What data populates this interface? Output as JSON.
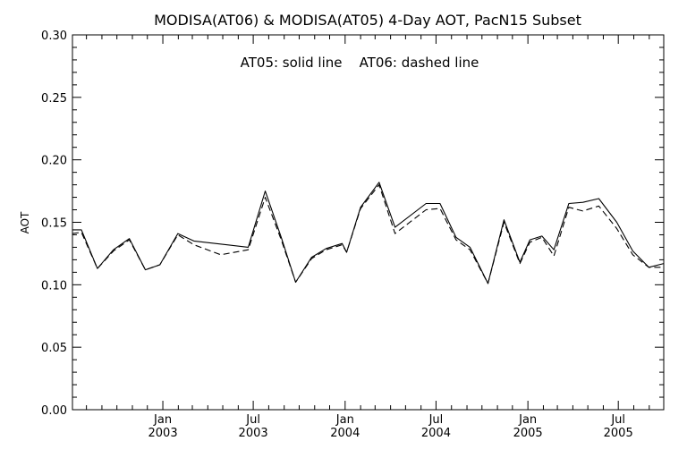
{
  "chart_data": {
    "type": "line",
    "title": "MODISA(AT06) & MODISA(AT05) 4-Day AOT, PacN15 Subset",
    "annotation": "AT05: solid line    AT06: dashed line",
    "xlabel": "",
    "ylabel": "AOT",
    "ylim": [
      0.0,
      0.3
    ],
    "xlim": [
      "2002-07-04",
      "2005-09-30"
    ],
    "yticks": [
      "0.00",
      "0.05",
      "0.10",
      "0.15",
      "0.20",
      "0.25",
      "0.30"
    ],
    "xticks": [
      {
        "month": "Jan",
        "year": "2003",
        "date": "2003-01-01"
      },
      {
        "month": "Jul",
        "year": "2003",
        "date": "2003-07-01"
      },
      {
        "month": "Jan",
        "year": "2004",
        "date": "2004-01-01"
      },
      {
        "month": "Jul",
        "year": "2004",
        "date": "2004-07-01"
      },
      {
        "month": "Jan",
        "year": "2005",
        "date": "2005-01-01"
      },
      {
        "month": "Jul",
        "year": "2005",
        "date": "2005-07-01"
      }
    ],
    "grid": false,
    "series": [
      {
        "name": "AT05",
        "style": "solid",
        "points": [
          [
            "2002-07-04",
            0.144
          ],
          [
            "2002-07-22",
            0.144
          ],
          [
            "2002-08-23",
            0.113
          ],
          [
            "2002-09-24",
            0.128
          ],
          [
            "2002-10-26",
            0.137
          ],
          [
            "2002-11-27",
            0.112
          ],
          [
            "2002-12-26",
            0.116
          ],
          [
            "2003-01-31",
            0.141
          ],
          [
            "2003-03-04",
            0.135
          ],
          [
            "2003-06-21",
            0.13
          ],
          [
            "2003-07-25",
            0.175
          ],
          [
            "2003-08-26",
            0.138
          ],
          [
            "2003-09-24",
            0.102
          ],
          [
            "2003-10-26",
            0.122
          ],
          [
            "2003-11-24",
            0.129
          ],
          [
            "2003-12-26",
            0.133
          ],
          [
            "2004-01-04",
            0.126
          ],
          [
            "2004-02-01",
            0.162
          ],
          [
            "2004-03-09",
            0.182
          ],
          [
            "2004-04-10",
            0.146
          ],
          [
            "2004-06-11",
            0.165
          ],
          [
            "2004-07-09",
            0.165
          ],
          [
            "2004-08-10",
            0.138
          ],
          [
            "2004-09-07",
            0.13
          ],
          [
            "2004-10-13",
            0.101
          ],
          [
            "2004-11-14",
            0.152
          ],
          [
            "2004-12-16",
            0.118
          ],
          [
            "2005-01-05",
            0.136
          ],
          [
            "2005-01-29",
            0.139
          ],
          [
            "2005-02-22",
            0.128
          ],
          [
            "2005-03-24",
            0.165
          ],
          [
            "2005-04-21",
            0.166
          ],
          [
            "2005-05-23",
            0.169
          ],
          [
            "2005-06-28",
            0.15
          ],
          [
            "2005-07-30",
            0.127
          ],
          [
            "2005-08-31",
            0.114
          ],
          [
            "2005-09-30",
            0.117
          ]
        ]
      },
      {
        "name": "AT06",
        "style": "dashed",
        "points": [
          [
            "2002-07-04",
            0.141
          ],
          [
            "2002-07-22",
            0.142
          ],
          [
            "2002-08-23",
            0.113
          ],
          [
            "2002-09-24",
            0.127
          ],
          [
            "2002-10-26",
            0.136
          ],
          [
            "2002-11-27",
            0.112
          ],
          [
            "2002-12-26",
            0.116
          ],
          [
            "2003-01-31",
            0.14
          ],
          [
            "2003-03-04",
            0.132
          ],
          [
            "2003-04-27",
            0.124
          ],
          [
            "2003-06-21",
            0.128
          ],
          [
            "2003-07-25",
            0.17
          ],
          [
            "2003-08-26",
            0.136
          ],
          [
            "2003-09-24",
            0.102
          ],
          [
            "2003-10-26",
            0.121
          ],
          [
            "2003-11-24",
            0.128
          ],
          [
            "2003-12-26",
            0.132
          ],
          [
            "2004-01-04",
            0.126
          ],
          [
            "2004-02-01",
            0.161
          ],
          [
            "2004-03-09",
            0.18
          ],
          [
            "2004-04-10",
            0.141
          ],
          [
            "2004-06-11",
            0.16
          ],
          [
            "2004-07-09",
            0.161
          ],
          [
            "2004-08-10",
            0.136
          ],
          [
            "2004-09-07",
            0.128
          ],
          [
            "2004-10-13",
            0.101
          ],
          [
            "2004-11-14",
            0.15
          ],
          [
            "2004-12-16",
            0.117
          ],
          [
            "2005-01-05",
            0.134
          ],
          [
            "2005-01-29",
            0.138
          ],
          [
            "2005-02-22",
            0.123
          ],
          [
            "2005-03-24",
            0.162
          ],
          [
            "2005-04-21",
            0.159
          ],
          [
            "2005-05-23",
            0.163
          ],
          [
            "2005-06-28",
            0.145
          ],
          [
            "2005-07-30",
            0.124
          ],
          [
            "2005-08-31",
            0.114
          ],
          [
            "2005-09-30",
            0.114
          ]
        ]
      }
    ]
  }
}
